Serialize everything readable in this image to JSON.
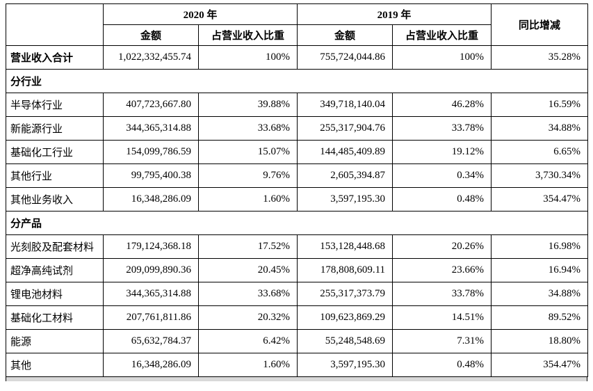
{
  "table": {
    "header": {
      "corner": "",
      "year_2020": "2020 年",
      "year_2019": "2019 年",
      "amount": "金额",
      "ratio": "占营业收入比重",
      "yoy": "同比增减"
    },
    "rows": [
      {
        "type": "data",
        "bold": true,
        "label": "营业收入合计",
        "a2020": "1,022,332,455.74",
        "r2020": "100%",
        "a2019": "755,724,044.86",
        "r2019": "100%",
        "yoy": "35.28%"
      },
      {
        "type": "section",
        "label": "分行业"
      },
      {
        "type": "data",
        "bold": false,
        "label": "半导体行业",
        "a2020": "407,723,667.80",
        "r2020": "39.88%",
        "a2019": "349,718,140.04",
        "r2019": "46.28%",
        "yoy": "16.59%"
      },
      {
        "type": "data",
        "bold": false,
        "label": "新能源行业",
        "a2020": "344,365,314.88",
        "r2020": "33.68%",
        "a2019": "255,317,904.76",
        "r2019": "33.78%",
        "yoy": "34.88%"
      },
      {
        "type": "data",
        "bold": false,
        "label": "基础化工行业",
        "a2020": "154,099,786.59",
        "r2020": "15.07%",
        "a2019": "144,485,409.89",
        "r2019": "19.12%",
        "yoy": "6.65%"
      },
      {
        "type": "data",
        "bold": false,
        "label": "其他行业",
        "a2020": "99,795,400.38",
        "r2020": "9.76%",
        "a2019": "2,605,394.87",
        "r2019": "0.34%",
        "yoy": "3,730.34%"
      },
      {
        "type": "data",
        "bold": false,
        "label": "其他业务收入",
        "a2020": "16,348,286.09",
        "r2020": "1.60%",
        "a2019": "3,597,195.30",
        "r2019": "0.48%",
        "yoy": "354.47%"
      },
      {
        "type": "section",
        "label": "分产品"
      },
      {
        "type": "data",
        "bold": false,
        "label": "光刻胶及配套材料",
        "a2020": "179,124,368.18",
        "r2020": "17.52%",
        "a2019": "153,128,448.68",
        "r2019": "20.26%",
        "yoy": "16.98%"
      },
      {
        "type": "data",
        "bold": false,
        "label": "超净高纯试剂",
        "a2020": "209,099,890.36",
        "r2020": "20.45%",
        "a2019": "178,808,609.11",
        "r2019": "23.66%",
        "yoy": "16.94%"
      },
      {
        "type": "data",
        "bold": false,
        "label": "锂电池材料",
        "a2020": "344,365,314.88",
        "r2020": "33.68%",
        "a2019": "255,317,373.79",
        "r2019": "33.78%",
        "yoy": "34.88%"
      },
      {
        "type": "data",
        "bold": false,
        "label": "基础化工材料",
        "a2020": "207,761,811.86",
        "r2020": "20.32%",
        "a2019": "109,623,869.29",
        "r2019": "14.51%",
        "yoy": "89.52%"
      },
      {
        "type": "data",
        "bold": false,
        "label": "能源",
        "a2020": "65,632,784.37",
        "r2020": "6.42%",
        "a2019": "55,248,548.69",
        "r2019": "7.31%",
        "yoy": "18.80%"
      },
      {
        "type": "data",
        "bold": false,
        "label": "其他",
        "a2020": "16,348,286.09",
        "r2020": "1.60%",
        "a2019": "3,597,195.30",
        "r2019": "0.48%",
        "yoy": "354.47%"
      }
    ]
  }
}
